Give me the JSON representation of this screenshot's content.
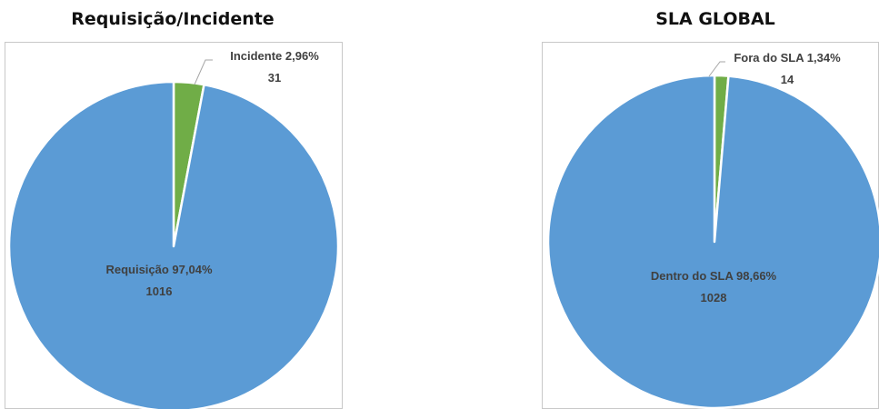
{
  "colors": {
    "blue": "#5b9bd5",
    "green": "#70ad47"
  },
  "chart_data": [
    {
      "type": "pie",
      "title": "Requisição/Incidente",
      "slices": [
        {
          "name": "Requisição",
          "percent_label": "97,04%",
          "value": 1016,
          "color": "#5b9bd5"
        },
        {
          "name": "Incidente",
          "percent_label": "2,96%",
          "value": 31,
          "color": "#70ad47"
        }
      ],
      "start": "top",
      "legend": "none"
    },
    {
      "type": "pie",
      "title": "SLA GLOBAL",
      "slices": [
        {
          "name": "Dentro do SLA",
          "percent_label": "98,66%",
          "value": 1028,
          "color": "#5b9bd5"
        },
        {
          "name": "Fora do SLA",
          "percent_label": "1,34%",
          "value": 14,
          "color": "#70ad47"
        }
      ],
      "start": "top",
      "legend": "none"
    }
  ]
}
